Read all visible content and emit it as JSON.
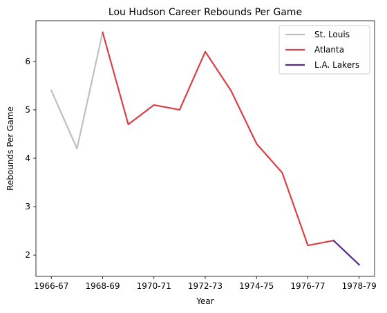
{
  "chart_data": {
    "type": "line",
    "title": "Lou Hudson Career Rebounds Per Game",
    "xlabel": "Year",
    "ylabel": "Rebounds Per Game",
    "x_tick_labels": [
      "1966-67",
      "1968-69",
      "1970-71",
      "1972-73",
      "1974-75",
      "1976-77",
      "1978-79"
    ],
    "y_ticks": [
      2,
      3,
      4,
      5,
      6
    ],
    "ylim": [
      1.56,
      6.84
    ],
    "grid": false,
    "legend_position": "top-right",
    "seasons": [
      "1966-67",
      "1967-68",
      "1968-69",
      "1969-70",
      "1970-71",
      "1971-72",
      "1972-73",
      "1973-74",
      "1974-75",
      "1975-76",
      "1976-77",
      "1977-78",
      "1978-79"
    ],
    "series": [
      {
        "name": "St. Louis",
        "color": "#bfbfbf",
        "x": [
          "1966-67",
          "1967-68",
          "1968-69"
        ],
        "values": [
          5.4,
          4.2,
          6.6
        ]
      },
      {
        "name": "Atlanta",
        "color": "#d93f43",
        "x": [
          "1968-69",
          "1969-70",
          "1970-71",
          "1971-72",
          "1972-73",
          "1973-74",
          "1974-75",
          "1975-76",
          "1976-77",
          "1977-78"
        ],
        "values": [
          6.6,
          4.7,
          5.1,
          5.0,
          6.2,
          5.4,
          4.3,
          3.7,
          2.2,
          2.3
        ]
      },
      {
        "name": "L.A. Lakers",
        "color": "#55288a",
        "x": [
          "1977-78",
          "1978-79"
        ],
        "values": [
          2.3,
          1.8
        ]
      }
    ]
  }
}
